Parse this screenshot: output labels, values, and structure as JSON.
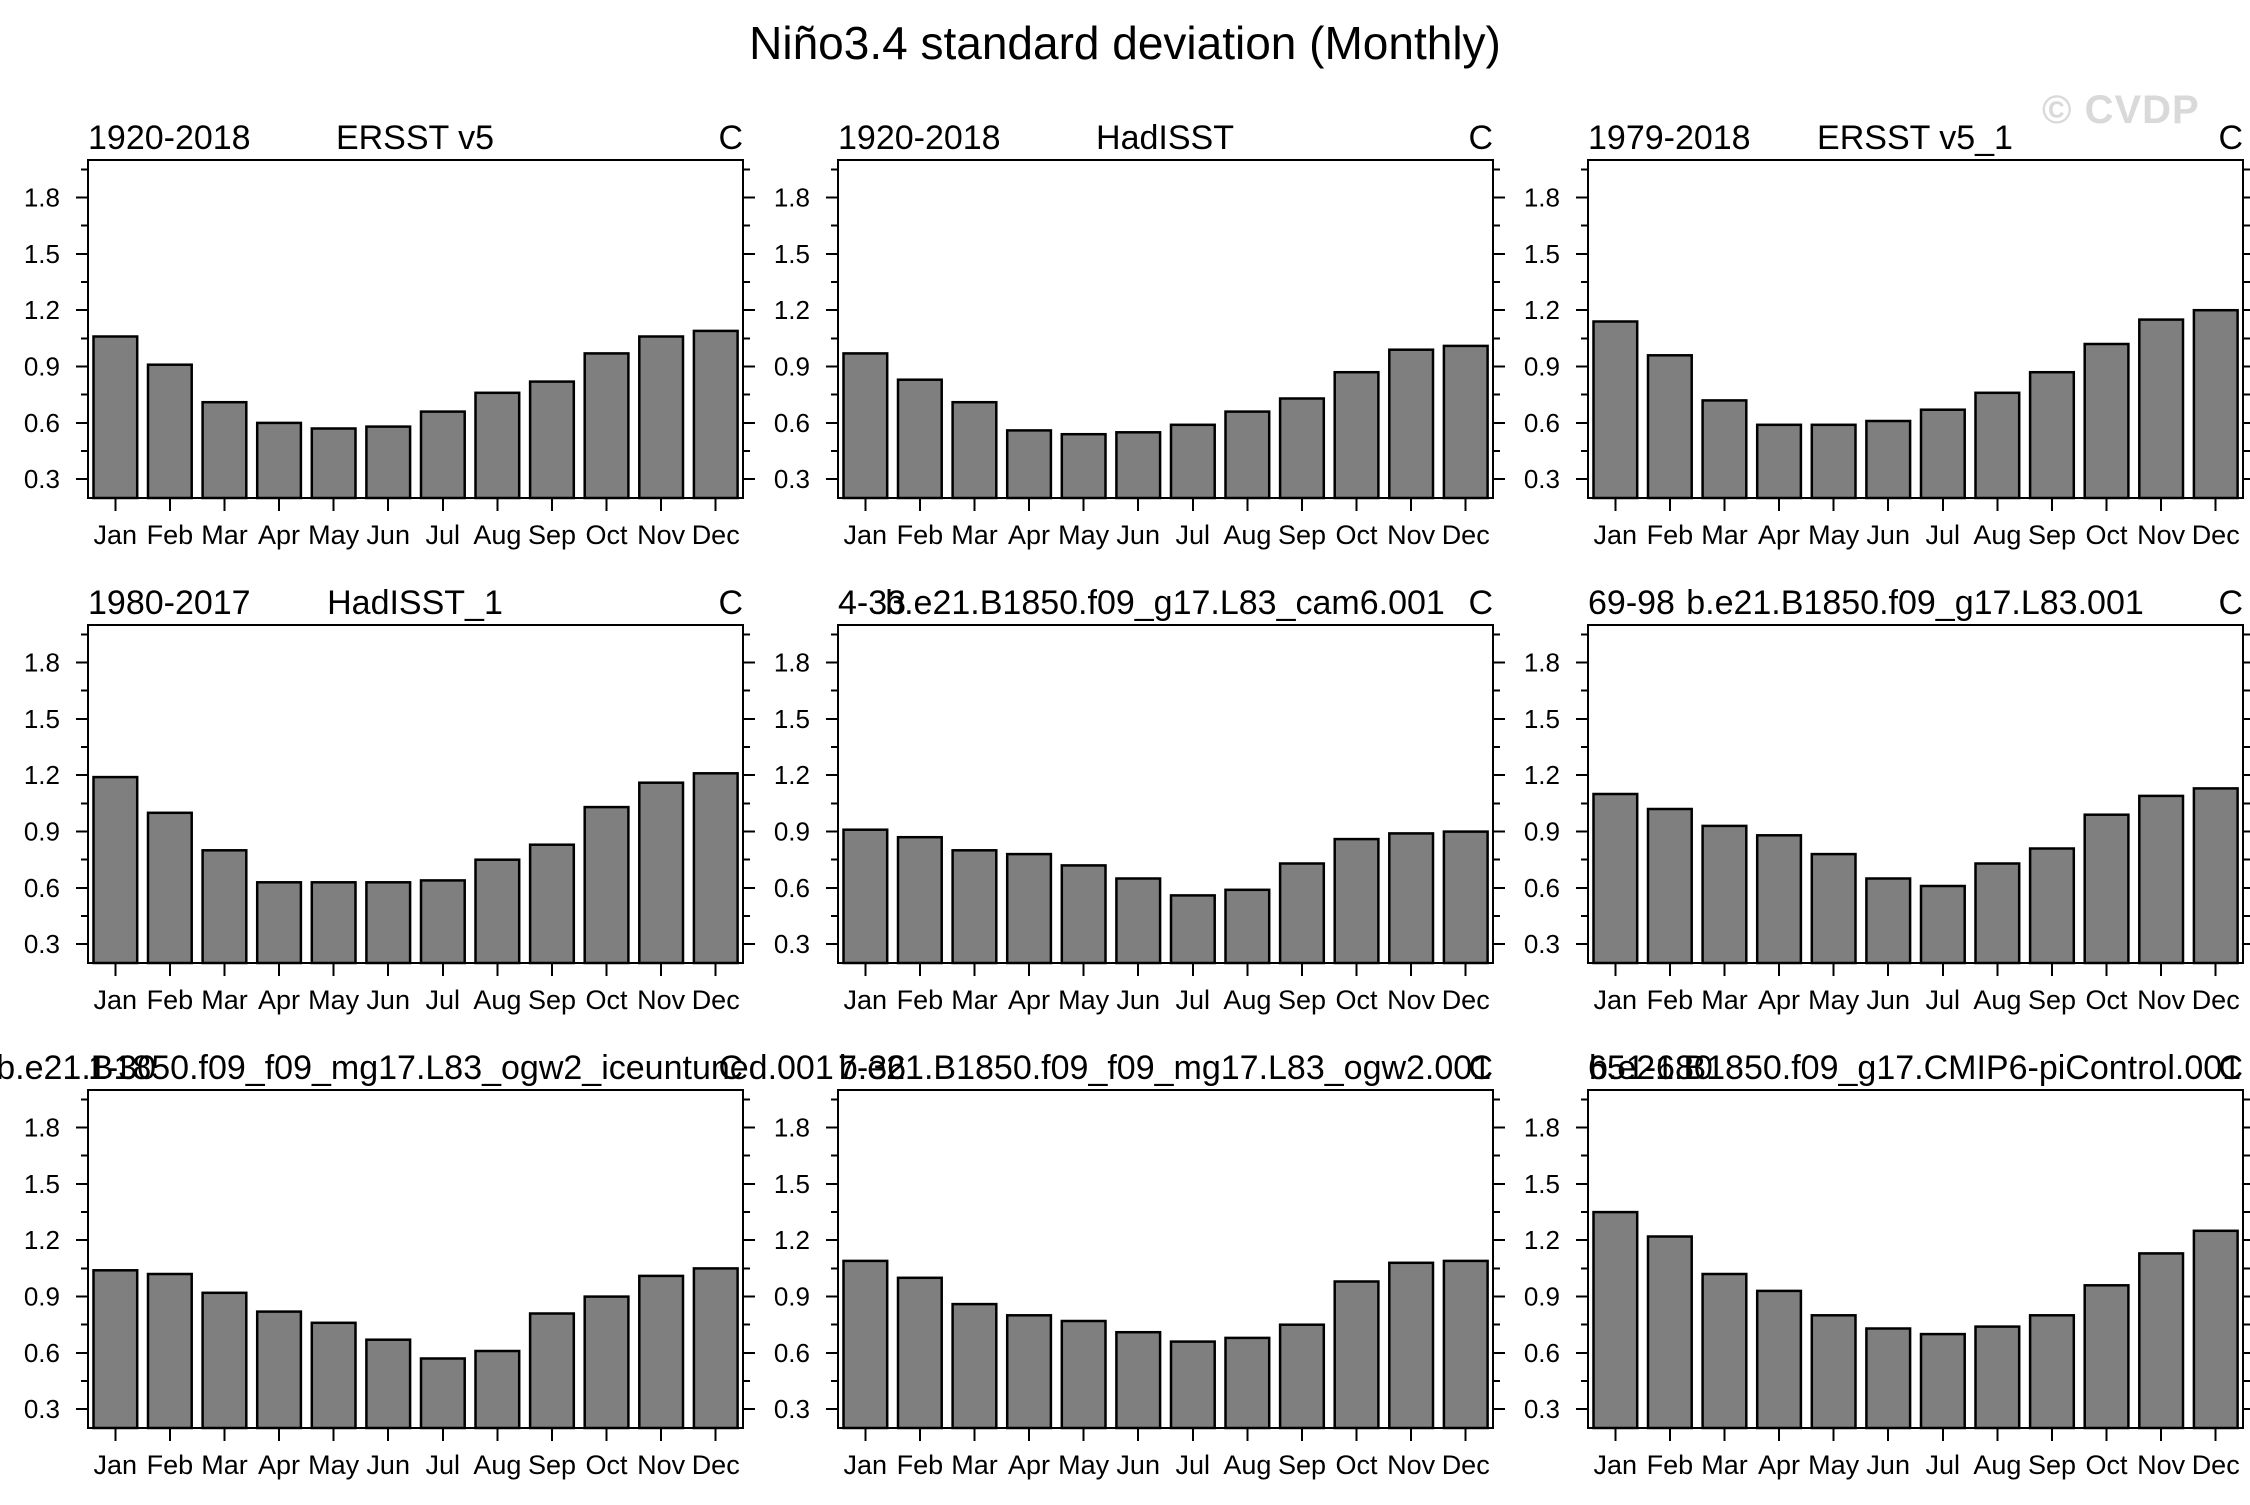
{
  "page_title": "Niño3.4 standard deviation (Monthly)",
  "watermark": "© CVDP",
  "colors": {
    "bar_fill": "#7f7f7f",
    "bar_stroke": "#000000",
    "axis_stroke": "#000000",
    "text": "#000000",
    "watermark": "#d9d9d9"
  },
  "chart_data": {
    "type": "bar",
    "grid_layout": "3x3",
    "categories": [
      "Jan",
      "Feb",
      "Mar",
      "Apr",
      "May",
      "Jun",
      "Jul",
      "Aug",
      "Sep",
      "Oct",
      "Nov",
      "Dec"
    ],
    "ylim": [
      0.2,
      2.0
    ],
    "yticks": [
      0.3,
      0.6,
      0.9,
      1.2,
      1.5,
      1.8
    ],
    "ytick_labels": [
      "0.3",
      "0.6",
      "0.9",
      "1.2",
      "1.5",
      "1.8"
    ],
    "minor_yticks": [
      0.45,
      0.75,
      1.05,
      1.35,
      1.65,
      1.95
    ],
    "grid_lines": "off",
    "unit_label": "C",
    "panels": [
      {
        "period": "1920-2018",
        "title": "ERSST v5",
        "values": [
          1.06,
          0.91,
          0.71,
          0.6,
          0.57,
          0.58,
          0.66,
          0.76,
          0.82,
          0.97,
          1.06,
          1.09
        ]
      },
      {
        "period": "1920-2018",
        "title": "HadISST",
        "values": [
          0.97,
          0.83,
          0.71,
          0.56,
          0.54,
          0.55,
          0.59,
          0.66,
          0.73,
          0.87,
          0.99,
          1.01
        ]
      },
      {
        "period": "1979-2018",
        "title": "ERSST v5_1",
        "values": [
          1.14,
          0.96,
          0.72,
          0.59,
          0.59,
          0.61,
          0.67,
          0.76,
          0.87,
          1.02,
          1.15,
          1.2
        ]
      },
      {
        "period": "1980-2017",
        "title": "HadISST_1",
        "values": [
          1.19,
          1.0,
          0.8,
          0.63,
          0.63,
          0.63,
          0.64,
          0.75,
          0.83,
          1.03,
          1.16,
          1.21
        ]
      },
      {
        "period": "4-33",
        "title": "b.e21.B1850.f09_g17.L83_cam6.001",
        "values": [
          0.91,
          0.87,
          0.8,
          0.78,
          0.72,
          0.65,
          0.56,
          0.59,
          0.73,
          0.86,
          0.89,
          0.9
        ]
      },
      {
        "period": "69-98",
        "title": "b.e21.B1850.f09_g17.L83.001",
        "values": [
          1.1,
          1.02,
          0.93,
          0.88,
          0.78,
          0.65,
          0.61,
          0.73,
          0.81,
          0.99,
          1.09,
          1.13
        ]
      },
      {
        "period": "1-30",
        "title": "b.e21.B1850.f09_f09_mg17.L83_ogw2_iceuntuned.001",
        "values": [
          1.04,
          1.02,
          0.92,
          0.82,
          0.76,
          0.67,
          0.57,
          0.61,
          0.81,
          0.9,
          1.01,
          1.05
        ]
      },
      {
        "period": "7-36",
        "title": "b.e21.B1850.f09_f09_mg17.L83_ogw2.001",
        "values": [
          1.09,
          1.0,
          0.86,
          0.8,
          0.77,
          0.71,
          0.66,
          0.68,
          0.75,
          0.98,
          1.08,
          1.09
        ]
      },
      {
        "period": "651-680",
        "title": "b.e21.B1850.f09_g17.CMIP6-piControl.001",
        "values": [
          1.35,
          1.22,
          1.02,
          0.93,
          0.8,
          0.73,
          0.7,
          0.74,
          0.8,
          0.96,
          1.13,
          1.25
        ]
      }
    ]
  }
}
